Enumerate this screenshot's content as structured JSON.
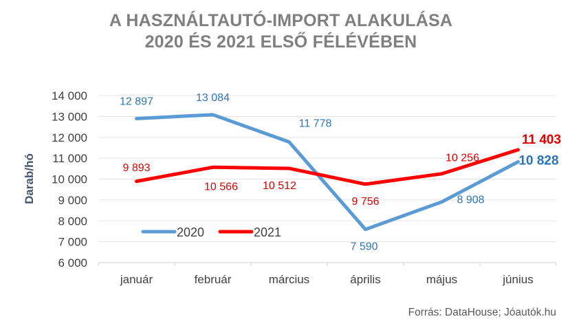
{
  "chart_data": {
    "type": "line",
    "title_line1": "A HASZNÁLTAUTÓ-IMPORT ALAKULÁSA",
    "title_line2": "2020 ÉS 2021 ELSŐ FÉLÉVÉBEN",
    "xlabel": "",
    "ylabel": "Darab/hó",
    "ylim": [
      6000,
      14000
    ],
    "yticks": [
      6000,
      7000,
      8000,
      9000,
      10000,
      11000,
      12000,
      13000,
      14000
    ],
    "ytick_labels": [
      "6 000",
      "7 000",
      "8 000",
      "9 000",
      "10 000",
      "11 000",
      "12 000",
      "13 000",
      "14 000"
    ],
    "grid": true,
    "legend_position": "bottom-left inside",
    "categories": [
      "január",
      "február",
      "március",
      "április",
      "május",
      "június"
    ],
    "series": [
      {
        "name": "2020",
        "color": "#5b9bd5",
        "label_color": "#2e75b6",
        "values": [
          12897,
          13084,
          11778,
          7590,
          8908,
          10828
        ],
        "labels": [
          "12 897",
          "13 084",
          "11 778",
          "7 590",
          "8 908",
          "10 828"
        ]
      },
      {
        "name": "2021",
        "color": "#ff0000",
        "label_color": "#e00000",
        "values": [
          9893,
          10566,
          10512,
          9756,
          10256,
          11403
        ],
        "labels": [
          "9 893",
          "10 566",
          "10 512",
          "9 756",
          "10 256",
          "11 403"
        ]
      }
    ],
    "source": "Forrás: DataHouse; Jóautók.hu"
  }
}
